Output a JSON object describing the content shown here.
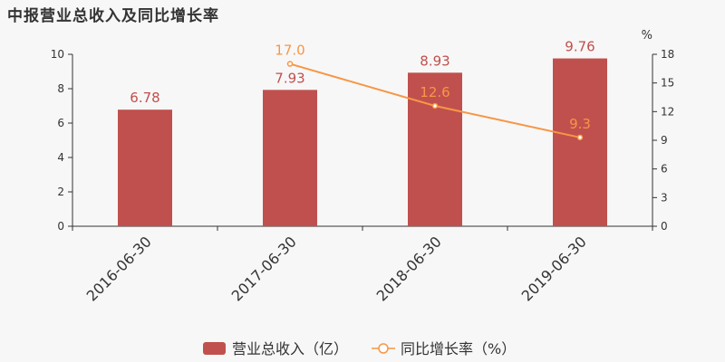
{
  "title": "中报营业总收入及同比增长率",
  "colors": {
    "bar": "#c0504d",
    "line": "#f79646"
  },
  "chart_data": {
    "type": "bar",
    "categories": [
      "2016-06-30",
      "2017-06-30",
      "2018-06-30",
      "2019-06-30"
    ],
    "series": [
      {
        "name": "营业总收入（亿）",
        "type": "bar",
        "axis": "left",
        "values": [
          6.78,
          7.93,
          8.93,
          9.76
        ],
        "labels": [
          "6.78",
          "7.93",
          "8.93",
          "9.76"
        ]
      },
      {
        "name": "同比增长率（%）",
        "type": "line",
        "axis": "right",
        "values": [
          null,
          17.0,
          12.6,
          9.3
        ],
        "labels": [
          null,
          "17.0",
          "12.6",
          "9.3"
        ]
      }
    ],
    "y_left": {
      "min": 0,
      "max": 10,
      "ticks": [
        "0",
        "2",
        "4",
        "6",
        "8",
        "10"
      ]
    },
    "y_right": {
      "label": "%",
      "min": 0,
      "max": 18,
      "ticks": [
        "0",
        "3",
        "6",
        "9",
        "12",
        "15",
        "18"
      ]
    },
    "legend_position": "bottom-center",
    "grid": false
  }
}
